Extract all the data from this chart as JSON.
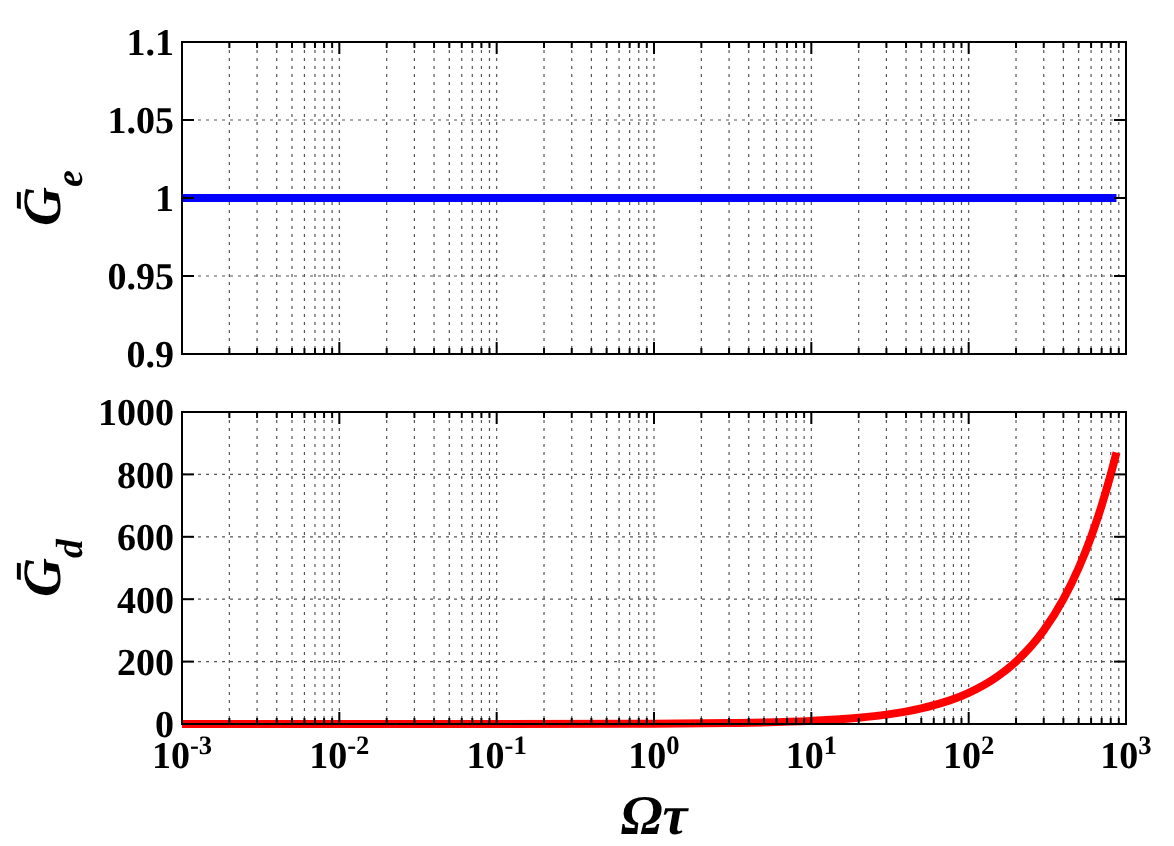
{
  "chart_data": [
    {
      "type": "line",
      "ylabel": "Ḡ$_{e}$",
      "x": [
        0.001,
        870
      ],
      "series": [
        {
          "color": "#0000ff",
          "values": [
            1,
            1
          ]
        }
      ],
      "xlim": [
        0.001,
        1000
      ],
      "ylim": [
        0.9,
        1.1
      ],
      "yticks": [
        0.9,
        0.95,
        1,
        1.05,
        1.1
      ],
      "xticks": [
        {
          "value": 0.001,
          "label": null
        },
        {
          "value": 0.002,
          "label": null
        },
        {
          "value": 0.003,
          "label": null
        },
        {
          "value": 0.004,
          "label": null
        },
        {
          "value": 0.005,
          "label": null
        },
        {
          "value": 0.006,
          "label": null
        },
        {
          "value": 0.007,
          "label": null
        },
        {
          "value": 0.008,
          "label": null
        },
        {
          "value": 0.009,
          "label": null
        },
        {
          "value": 0.01,
          "label": null
        },
        {
          "value": 0.02,
          "label": null
        },
        {
          "value": 0.03,
          "label": null
        },
        {
          "value": 0.04,
          "label": null
        },
        {
          "value": 0.05,
          "label": null
        },
        {
          "value": 0.06,
          "label": null
        },
        {
          "value": 0.07,
          "label": null
        },
        {
          "value": 0.08,
          "label": null
        },
        {
          "value": 0.09,
          "label": null
        },
        {
          "value": 0.1,
          "label": null
        },
        {
          "value": 0.2,
          "label": null
        },
        {
          "value": 0.3,
          "label": null
        },
        {
          "value": 0.4,
          "label": null
        },
        {
          "value": 0.5,
          "label": null
        },
        {
          "value": 0.6,
          "label": null
        },
        {
          "value": 0.7,
          "label": null
        },
        {
          "value": 0.8,
          "label": null
        },
        {
          "value": 0.9,
          "label": null
        },
        {
          "value": 1,
          "label": null
        },
        {
          "value": 2,
          "label": null
        },
        {
          "value": 3,
          "label": null
        },
        {
          "value": 4,
          "label": null
        },
        {
          "value": 5,
          "label": null
        },
        {
          "value": 6,
          "label": null
        },
        {
          "value": 7,
          "label": null
        },
        {
          "value": 8,
          "label": null
        },
        {
          "value": 9,
          "label": null
        },
        {
          "value": 10,
          "label": null
        },
        {
          "value": 20,
          "label": null
        },
        {
          "value": 30,
          "label": null
        },
        {
          "value": 40,
          "label": null
        },
        {
          "value": 50,
          "label": null
        },
        {
          "value": 60,
          "label": null
        },
        {
          "value": 70,
          "label": null
        },
        {
          "value": 80,
          "label": null
        },
        {
          "value": 90,
          "label": null
        },
        {
          "value": 100,
          "label": null
        },
        {
          "value": 200,
          "label": null
        },
        {
          "value": 300,
          "label": null
        },
        {
          "value": 400,
          "label": null
        },
        {
          "value": 500,
          "label": null
        },
        {
          "value": 600,
          "label": null
        },
        {
          "value": 700,
          "label": null
        },
        {
          "value": 800,
          "label": null
        },
        {
          "value": 900,
          "label": null
        },
        {
          "value": 1000,
          "label": null
        }
      ],
      "log": "x",
      "grid": true,
      "line_style": "solid",
      "tick_labels": "y"
    },
    {
      "type": "line",
      "ylabel": "Ḡ$_{d}$",
      "xlabel": "Ωτ",
      "x": [
        0.001,
        0.01,
        0.1,
        1,
        3,
        10,
        20,
        30,
        50,
        70,
        100,
        150,
        200,
        300,
        400,
        500,
        600,
        700,
        800,
        870
      ],
      "series": [
        {
          "color": "#ff0000",
          "values": [
            0,
            0,
            0,
            1,
            3,
            10,
            20,
            30,
            50,
            70,
            100,
            150,
            200,
            300,
            400,
            500,
            600,
            700,
            800,
            870
          ]
        }
      ],
      "xlim": [
        0.001,
        1000
      ],
      "ylim": [
        0,
        1000
      ],
      "yticks": [
        0,
        200,
        400,
        600,
        800,
        1000
      ],
      "xticks": [
        {
          "value": 0.001,
          "label": "10$^{-3}$"
        },
        {
          "value": 0.002,
          "label": null
        },
        {
          "value": 0.003,
          "label": null
        },
        {
          "value": 0.004,
          "label": null
        },
        {
          "value": 0.005,
          "label": null
        },
        {
          "value": 0.006,
          "label": null
        },
        {
          "value": 0.007,
          "label": null
        },
        {
          "value": 0.008,
          "label": null
        },
        {
          "value": 0.009,
          "label": null
        },
        {
          "value": 0.01,
          "label": "10$^{-2}$"
        },
        {
          "value": 0.02,
          "label": null
        },
        {
          "value": 0.03,
          "label": null
        },
        {
          "value": 0.04,
          "label": null
        },
        {
          "value": 0.05,
          "label": null
        },
        {
          "value": 0.06,
          "label": null
        },
        {
          "value": 0.07,
          "label": null
        },
        {
          "value": 0.08,
          "label": null
        },
        {
          "value": 0.09,
          "label": null
        },
        {
          "value": 0.1,
          "label": "10$^{-1}$"
        },
        {
          "value": 0.2,
          "label": null
        },
        {
          "value": 0.3,
          "label": null
        },
        {
          "value": 0.4,
          "label": null
        },
        {
          "value": 0.5,
          "label": null
        },
        {
          "value": 0.6,
          "label": null
        },
        {
          "value": 0.7,
          "label": null
        },
        {
          "value": 0.8,
          "label": null
        },
        {
          "value": 0.9,
          "label": null
        },
        {
          "value": 1,
          "label": "10$^{0}$"
        },
        {
          "value": 2,
          "label": null
        },
        {
          "value": 3,
          "label": null
        },
        {
          "value": 4,
          "label": null
        },
        {
          "value": 5,
          "label": null
        },
        {
          "value": 6,
          "label": null
        },
        {
          "value": 7,
          "label": null
        },
        {
          "value": 8,
          "label": null
        },
        {
          "value": 9,
          "label": null
        },
        {
          "value": 10,
          "label": "10$^{1}$"
        },
        {
          "value": 20,
          "label": null
        },
        {
          "value": 30,
          "label": null
        },
        {
          "value": 40,
          "label": null
        },
        {
          "value": 50,
          "label": null
        },
        {
          "value": 60,
          "label": null
        },
        {
          "value": 70,
          "label": null
        },
        {
          "value": 80,
          "label": null
        },
        {
          "value": 90,
          "label": null
        },
        {
          "value": 100,
          "label": "10$^{2}$"
        },
        {
          "value": 200,
          "label": null
        },
        {
          "value": 300,
          "label": null
        },
        {
          "value": 400,
          "label": null
        },
        {
          "value": 500,
          "label": null
        },
        {
          "value": 600,
          "label": null
        },
        {
          "value": 700,
          "label": null
        },
        {
          "value": 800,
          "label": null
        },
        {
          "value": 900,
          "label": null
        },
        {
          "value": 1000,
          "label": "10$^{3}$"
        }
      ],
      "log": "x",
      "grid": true,
      "line_style": "solid"
    }
  ]
}
